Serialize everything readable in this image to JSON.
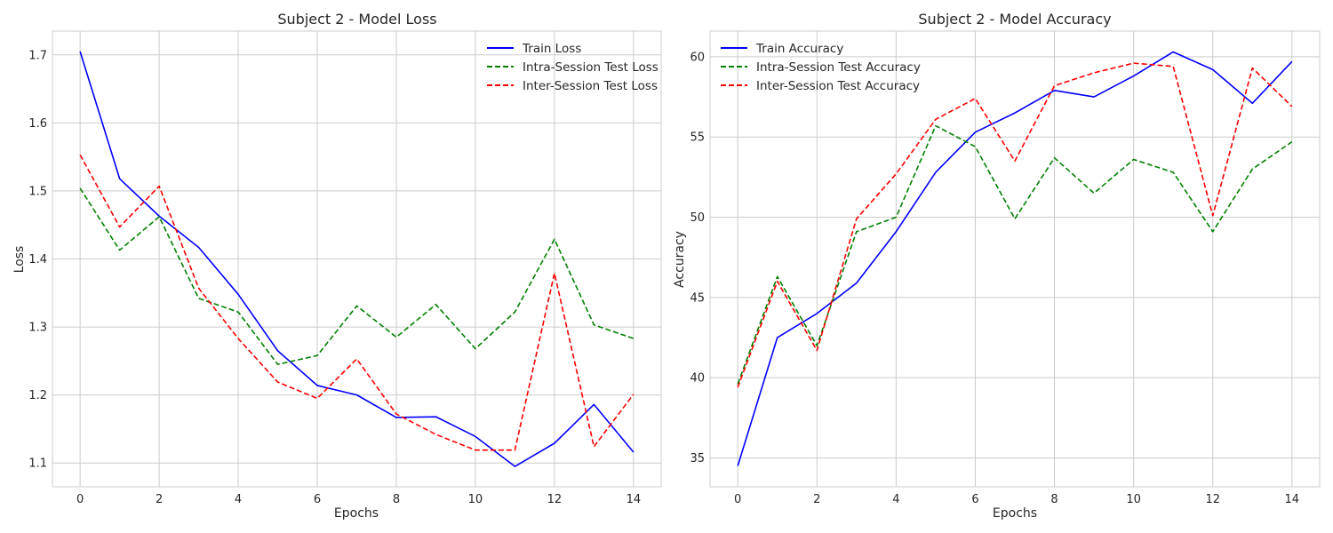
{
  "chart_data": [
    {
      "type": "line",
      "title": "Subject 2 - Model Loss",
      "xlabel": "Epochs",
      "ylabel": "Loss",
      "xlim": [
        -0.7,
        14.7
      ],
      "ylim": [
        1.065,
        1.735
      ],
      "xticks": [
        0,
        2,
        4,
        6,
        8,
        10,
        12,
        14
      ],
      "yticks": [
        1.1,
        1.2,
        1.3,
        1.4,
        1.5,
        1.6,
        1.7
      ],
      "ytick_decimals": 1,
      "grid": true,
      "legend_position": "top-right",
      "x": [
        0,
        1,
        2,
        3,
        4,
        5,
        6,
        7,
        8,
        9,
        10,
        11,
        12,
        13,
        14
      ],
      "series": [
        {
          "name": "Train Loss",
          "color": "#0000ff",
          "style": "solid",
          "values": [
            1.705,
            1.518,
            1.463,
            1.417,
            1.348,
            1.265,
            1.214,
            1.2,
            1.167,
            1.168,
            1.139,
            1.095,
            1.129,
            1.186,
            1.116
          ]
        },
        {
          "name": "Intra-Session Test Loss",
          "color": "#008000",
          "style": "dashed",
          "values": [
            1.504,
            1.413,
            1.462,
            1.342,
            1.322,
            1.245,
            1.258,
            1.331,
            1.285,
            1.333,
            1.268,
            1.322,
            1.429,
            1.303,
            1.283
          ]
        },
        {
          "name": "Inter-Session Test Loss",
          "color": "#ff0000",
          "style": "dashed",
          "values": [
            1.553,
            1.447,
            1.507,
            1.357,
            1.283,
            1.219,
            1.195,
            1.253,
            1.172,
            1.142,
            1.119,
            1.119,
            1.379,
            1.124,
            1.201
          ]
        }
      ]
    },
    {
      "type": "line",
      "title": "Subject 2 - Model Accuracy",
      "xlabel": "Epochs",
      "ylabel": "Accuracy",
      "xlim": [
        -0.7,
        14.7
      ],
      "ylim": [
        33.2,
        61.6
      ],
      "xticks": [
        0,
        2,
        4,
        6,
        8,
        10,
        12,
        14
      ],
      "yticks": [
        35,
        40,
        45,
        50,
        55,
        60
      ],
      "ytick_decimals": 0,
      "grid": true,
      "legend_position": "top-left",
      "x": [
        0,
        1,
        2,
        3,
        4,
        5,
        6,
        7,
        8,
        9,
        10,
        11,
        12,
        13,
        14
      ],
      "series": [
        {
          "name": "Train Accuracy",
          "color": "#0000ff",
          "style": "solid",
          "values": [
            34.5,
            42.5,
            44.0,
            45.9,
            49.1,
            52.8,
            55.3,
            56.5,
            57.9,
            57.5,
            58.8,
            60.3,
            59.2,
            57.1,
            59.7
          ]
        },
        {
          "name": "Intra-Session Test Accuracy",
          "color": "#008000",
          "style": "dashed",
          "values": [
            39.6,
            46.3,
            42.0,
            49.1,
            50.0,
            55.7,
            54.4,
            49.9,
            53.7,
            51.5,
            53.6,
            52.8,
            49.1,
            53.0,
            54.7
          ]
        },
        {
          "name": "Inter-Session Test Accuracy",
          "color": "#ff0000",
          "style": "dashed",
          "values": [
            39.4,
            46.0,
            41.7,
            49.9,
            52.7,
            56.1,
            57.4,
            53.5,
            58.2,
            59.0,
            59.6,
            59.4,
            50.1,
            59.3,
            56.9
          ]
        }
      ]
    }
  ]
}
